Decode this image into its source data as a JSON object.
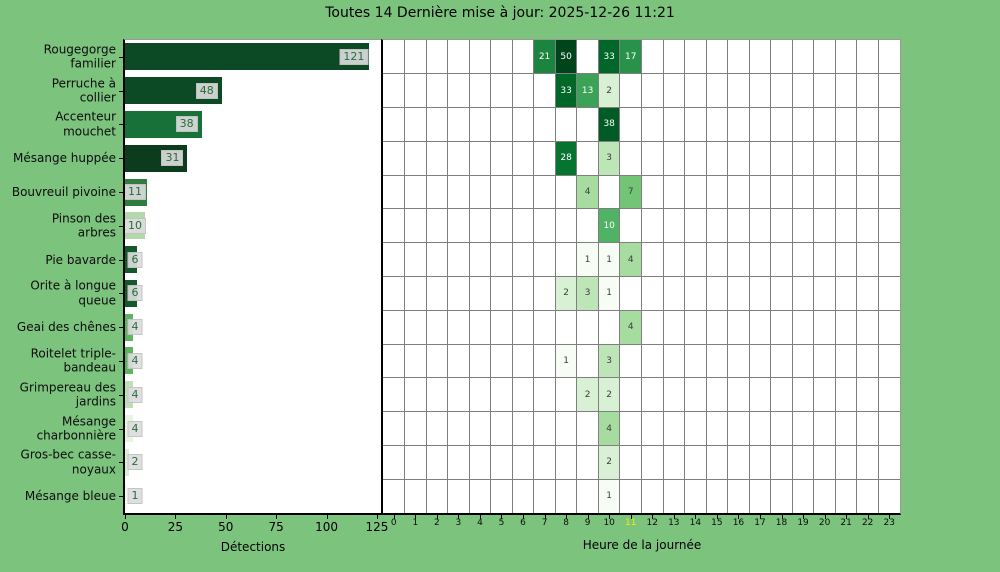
{
  "title": "Toutes 14 Dernière mise à jour: 2025-12-26 11:21",
  "colors": {
    "background": "#7cc37e",
    "plot_background": "#ffffff",
    "grid_line": "#7f7f7f",
    "spine": "#000000",
    "bar_value_box_bg": "#dcdcdc",
    "bar_value_text": "#2a6b3c",
    "tick_text": "#000000",
    "current_hour_tick": "#edf205",
    "cell_text_dark": "#3d3d3d",
    "cell_text_light": "#ffffff"
  },
  "chart_data": [
    {
      "type": "bar",
      "orientation": "horizontal",
      "xlabel": "Détections",
      "xlim": [
        0,
        127
      ],
      "xticks": [
        0,
        25,
        50,
        75,
        100,
        125
      ],
      "categories": [
        "Rougegorge familier",
        "Perruche à collier",
        "Accenteur mouchet",
        "Mésange huppée",
        "Bouvreuil pivoine",
        "Pinson des arbres",
        "Pie bavarde",
        "Orite à longue queue",
        "Geai des chênes",
        "Roitelet triple-bandeau",
        "Grimpereau des jardins",
        "Mésange charbonnière",
        "Gros-bec casse-noyaux",
        "Mésange bleue"
      ],
      "category_labels": [
        "Rougegorge\nfamilier",
        "Perruche à\ncollier",
        "Accenteur\nmouchet",
        "Mésange huppée",
        "Bouvreuil pivoine",
        "Pinson des\narbres",
        "Pie bavarde",
        "Orite à longue\nqueue",
        "Geai des chênes",
        "Roitelet triple-\nbandeau",
        "Grimpereau des\njardins",
        "Mésange\ncharbonnière",
        "Gros-bec casse-\nnoyaux",
        "Mésange bleue"
      ],
      "values": [
        121,
        48,
        38,
        31,
        11,
        10,
        6,
        6,
        4,
        4,
        4,
        4,
        2,
        1
      ],
      "bar_colors": [
        "#0c4a26",
        "#0c4a26",
        "#187138",
        "#0d3b1e",
        "#2e7d3d",
        "#b2d9aa",
        "#14592c",
        "#14592c",
        "#5fb25e",
        "#5fb25e",
        "#bfe0b6",
        "#e7f4e2",
        "#ddeed7",
        "#f4faf1"
      ]
    },
    {
      "type": "heatmap",
      "xlabel": "Heure de la journée",
      "x": [
        0,
        1,
        2,
        3,
        4,
        5,
        6,
        7,
        8,
        9,
        10,
        11,
        12,
        13,
        14,
        15,
        16,
        17,
        18,
        19,
        20,
        21,
        22,
        23
      ],
      "current_hour": 11,
      "rows": [
        {
          "species": "Rougegorge familier",
          "cells": {
            "7": 21,
            "8": 50,
            "10": 33,
            "11": 17
          }
        },
        {
          "species": "Perruche à collier",
          "cells": {
            "8": 33,
            "9": 13,
            "10": 2
          }
        },
        {
          "species": "Accenteur mouchet",
          "cells": {
            "10": 38
          }
        },
        {
          "species": "Mésange huppée",
          "cells": {
            "8": 28,
            "10": 3
          }
        },
        {
          "species": "Bouvreuil pivoine",
          "cells": {
            "9": 4,
            "11": 7
          }
        },
        {
          "species": "Pinson des arbres",
          "cells": {
            "10": 10
          }
        },
        {
          "species": "Pie bavarde",
          "cells": {
            "9": 1,
            "10": 1,
            "11": 4
          }
        },
        {
          "species": "Orite à longue queue",
          "cells": {
            "8": 2,
            "9": 3,
            "10": 1
          }
        },
        {
          "species": "Geai des chênes",
          "cells": {
            "11": 4
          }
        },
        {
          "species": "Roitelet triple-bandeau",
          "cells": {
            "8": 1,
            "10": 3
          }
        },
        {
          "species": "Grimpereau des jardins",
          "cells": {
            "9": 2,
            "10": 2
          }
        },
        {
          "species": "Mésange charbonnière",
          "cells": {
            "10": 4
          }
        },
        {
          "species": "Gros-bec casse-noyaux",
          "cells": {
            "10": 2
          }
        },
        {
          "species": "Mésange bleue",
          "cells": {
            "10": 1
          }
        }
      ],
      "value_colors": {
        "1": "#f7fcf5",
        "2": "#d8f0d3",
        "3": "#bee5b7",
        "4": "#a7dca1",
        "7": "#74c476",
        "10": "#50b264",
        "13": "#3aa357",
        "17": "#29924a",
        "21": "#1b843f",
        "28": "#077331",
        "33": "#006729",
        "38": "#005b25",
        "50": "#00441b"
      },
      "white_text_min_value": 10
    }
  ]
}
